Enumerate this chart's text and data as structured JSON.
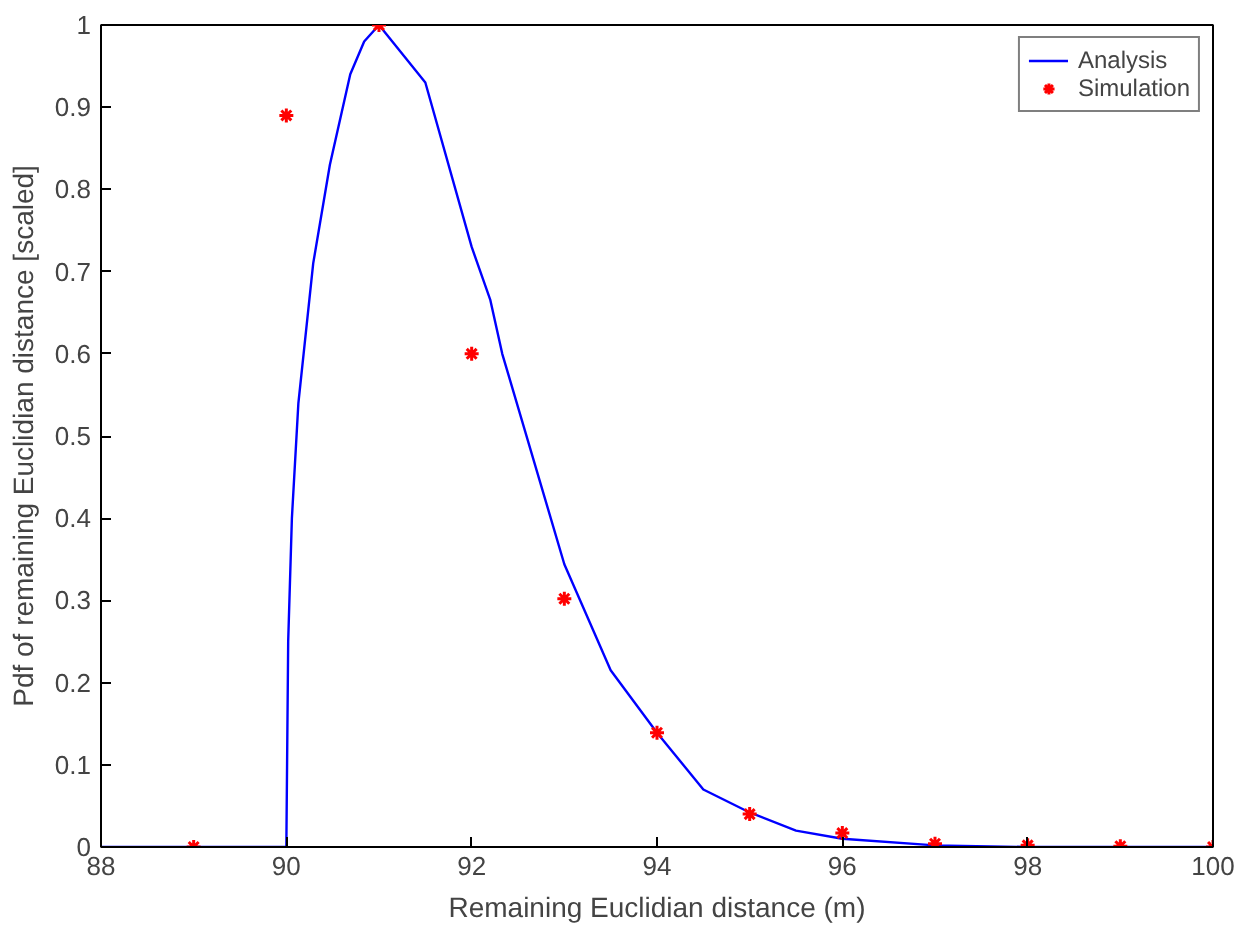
{
  "chart_data": {
    "type": "line",
    "xlabel": "Remaining Euclidian distance (m)",
    "ylabel": "Pdf of remaining Euclidian distance [scaled]",
    "xlim": [
      88,
      100
    ],
    "ylim": [
      0,
      1
    ],
    "xticks": [
      88,
      90,
      92,
      94,
      96,
      98,
      100
    ],
    "yticks": [
      0,
      0.1,
      0.2,
      0.3,
      0.4,
      0.5,
      0.6,
      0.7,
      0.8,
      0.9,
      1
    ],
    "grid": false,
    "legend": "top right",
    "series": [
      {
        "name": "Analysis",
        "color": "#0000ff",
        "marker": "none",
        "line_style": "solid",
        "x": [
          88,
          89,
          90,
          90.02,
          90.06,
          90.13,
          90.29,
          90.47,
          90.69,
          90.84,
          91,
          91.5,
          92,
          92.2,
          92.33,
          93,
          93.5,
          94,
          94.5,
          95,
          95.5,
          96,
          97,
          98,
          100
        ],
        "values": [
          0,
          0,
          0,
          0.25,
          0.4,
          0.54,
          0.71,
          0.83,
          0.94,
          0.98,
          1,
          0.93,
          0.73,
          0.666,
          0.6,
          0.344,
          0.215,
          0.139,
          0.07,
          0.042,
          0.02,
          0.01,
          0.002,
          0,
          0
        ]
      },
      {
        "name": "Simulation",
        "type": "scatter",
        "color": "#ff0000",
        "marker": "cross",
        "x": [
          89,
          90,
          91,
          92,
          93,
          94,
          95,
          96,
          97,
          98,
          99,
          100
        ],
        "values": [
          0,
          0.89,
          1,
          0.6,
          0.302,
          0.139,
          0.04,
          0.017,
          0.004,
          0.002,
          0.001,
          0
        ]
      }
    ]
  }
}
